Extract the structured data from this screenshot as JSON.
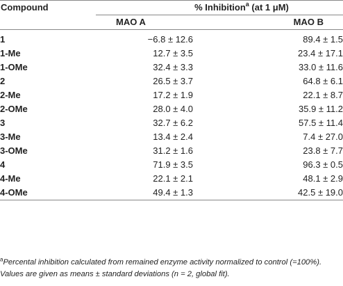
{
  "table": {
    "header": {
      "compound": "Compound",
      "inhibition_prefix": "% Inhibition",
      "inhibition_sup": "a",
      "inhibition_suffix": " (at 1 μM)",
      "mao_a": "MAO A",
      "mao_b": "MAO B"
    },
    "rows": [
      {
        "compound": "1",
        "mao_a": "−6.8 ± 12.6",
        "mao_b": "89.4 ± 1.5"
      },
      {
        "compound": "1-Me",
        "mao_a": "12.7 ± 3.5",
        "mao_b": "23.4 ± 17.1"
      },
      {
        "compound": "1-OMe",
        "mao_a": "32.4 ± 3.3",
        "mao_b": "33.0 ± 11.6"
      },
      {
        "compound": "2",
        "mao_a": "26.5 ± 3.7",
        "mao_b": "64.8 ± 6.1"
      },
      {
        "compound": "2-Me",
        "mao_a": "17.2 ± 1.9",
        "mao_b": "22.1 ± 8.7"
      },
      {
        "compound": "2-OMe",
        "mao_a": "28.0 ± 4.0",
        "mao_b": "35.9 ± 11.2"
      },
      {
        "compound": "3",
        "mao_a": "32.7 ± 6.2",
        "mao_b": "57.5 ± 11.4"
      },
      {
        "compound": "3-Me",
        "mao_a": "13.4 ± 2.4",
        "mao_b": "7.4 ± 27.0"
      },
      {
        "compound": "3-OMe",
        "mao_a": "31.2 ± 1.6",
        "mao_b": "23.8 ± 7.7"
      },
      {
        "compound": "4",
        "mao_a": "71.9 ± 3.5",
        "mao_b": "96.3 ± 0.5"
      },
      {
        "compound": "4-Me",
        "mao_a": "22.1 ± 2.1",
        "mao_b": "48.1 ± 2.9"
      },
      {
        "compound": "4-OMe",
        "mao_a": "49.4 ± 1.3",
        "mao_b": "42.5 ± 19.0"
      }
    ]
  },
  "footnote": {
    "marker": "a",
    "text": "Percental inhibition calculated from remained enzyme activity normalized to control (=100%). Values are given as means ± standard deviations (n = 2, global fit)."
  }
}
